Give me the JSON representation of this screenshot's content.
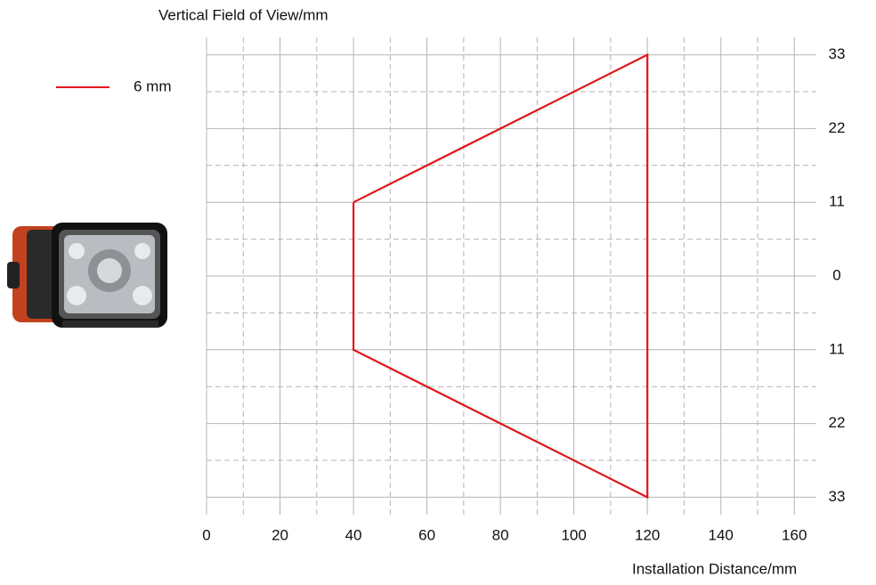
{
  "chart_data": {
    "type": "line",
    "y_axis_label": "Vertical Field of View/mm",
    "x_axis_label": "Installation Distance/mm",
    "series": [
      {
        "name": "6 mm",
        "color": "#e3141b",
        "x": [
          40,
          120,
          120,
          40,
          40
        ],
        "values": [
          11,
          33,
          -33,
          -11,
          11
        ]
      }
    ],
    "xlim": [
      0,
      166
    ],
    "ylim": [
      -35.6,
      35.6
    ],
    "xticks": [
      0,
      20,
      40,
      60,
      80,
      100,
      120,
      140,
      160
    ],
    "yticks": [
      33,
      22,
      11,
      0,
      {
        "value": -11,
        "label": "11"
      },
      {
        "value": -22,
        "label": "22"
      },
      {
        "value": -33,
        "label": "33"
      }
    ],
    "x_minor_grid": [
      10,
      30,
      50,
      70,
      90,
      110,
      130,
      150
    ],
    "y_minor_grid": [
      27.5,
      16.5,
      5.5,
      -5.5,
      -16.5,
      -27.5
    ],
    "grid": true,
    "legend": "upper left"
  }
}
